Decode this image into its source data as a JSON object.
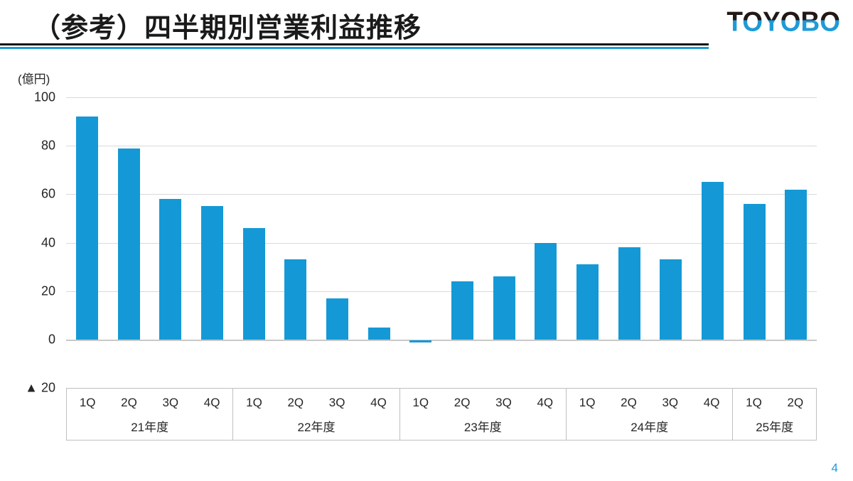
{
  "slide": {
    "title": "（参考）四半期別営業利益推移",
    "logo_text": "TOYOBO",
    "page_number": "4"
  },
  "chart_data": {
    "type": "bar",
    "title": "四半期別営業利益推移",
    "unit_label": "(億円)",
    "ylim": [
      -20,
      100
    ],
    "yticks": [
      100,
      80,
      60,
      40,
      20,
      0,
      -20
    ],
    "ytick_labels": [
      "100",
      "80",
      "60",
      "40",
      "20",
      "0",
      "▲ 20"
    ],
    "grid": true,
    "legend": "none",
    "bar_color": "#1499D6",
    "groups": [
      {
        "year_label": "21年度",
        "quarters": [
          "1Q",
          "2Q",
          "3Q",
          "4Q"
        ],
        "values": [
          92,
          79,
          58,
          55
        ]
      },
      {
        "year_label": "22年度",
        "quarters": [
          "1Q",
          "2Q",
          "3Q",
          "4Q"
        ],
        "values": [
          46,
          33,
          17,
          5
        ]
      },
      {
        "year_label": "23年度",
        "quarters": [
          "1Q",
          "2Q",
          "3Q",
          "4Q"
        ],
        "values": [
          -1,
          24,
          26,
          40
        ]
      },
      {
        "year_label": "24年度",
        "quarters": [
          "1Q",
          "2Q",
          "3Q",
          "4Q"
        ],
        "values": [
          31,
          38,
          33,
          65
        ]
      },
      {
        "year_label": "25年度",
        "quarters": [
          "1Q",
          "2Q"
        ],
        "values": [
          56,
          62
        ]
      }
    ]
  },
  "colors": {
    "bar": "#1499D6",
    "accent_blue": "#1E9BD7",
    "logo_black": "#231815",
    "gridline": "#D9D9D9",
    "axis_border": "#BFBFBF",
    "text": "#262626",
    "page_number": "#1E9BD7"
  }
}
